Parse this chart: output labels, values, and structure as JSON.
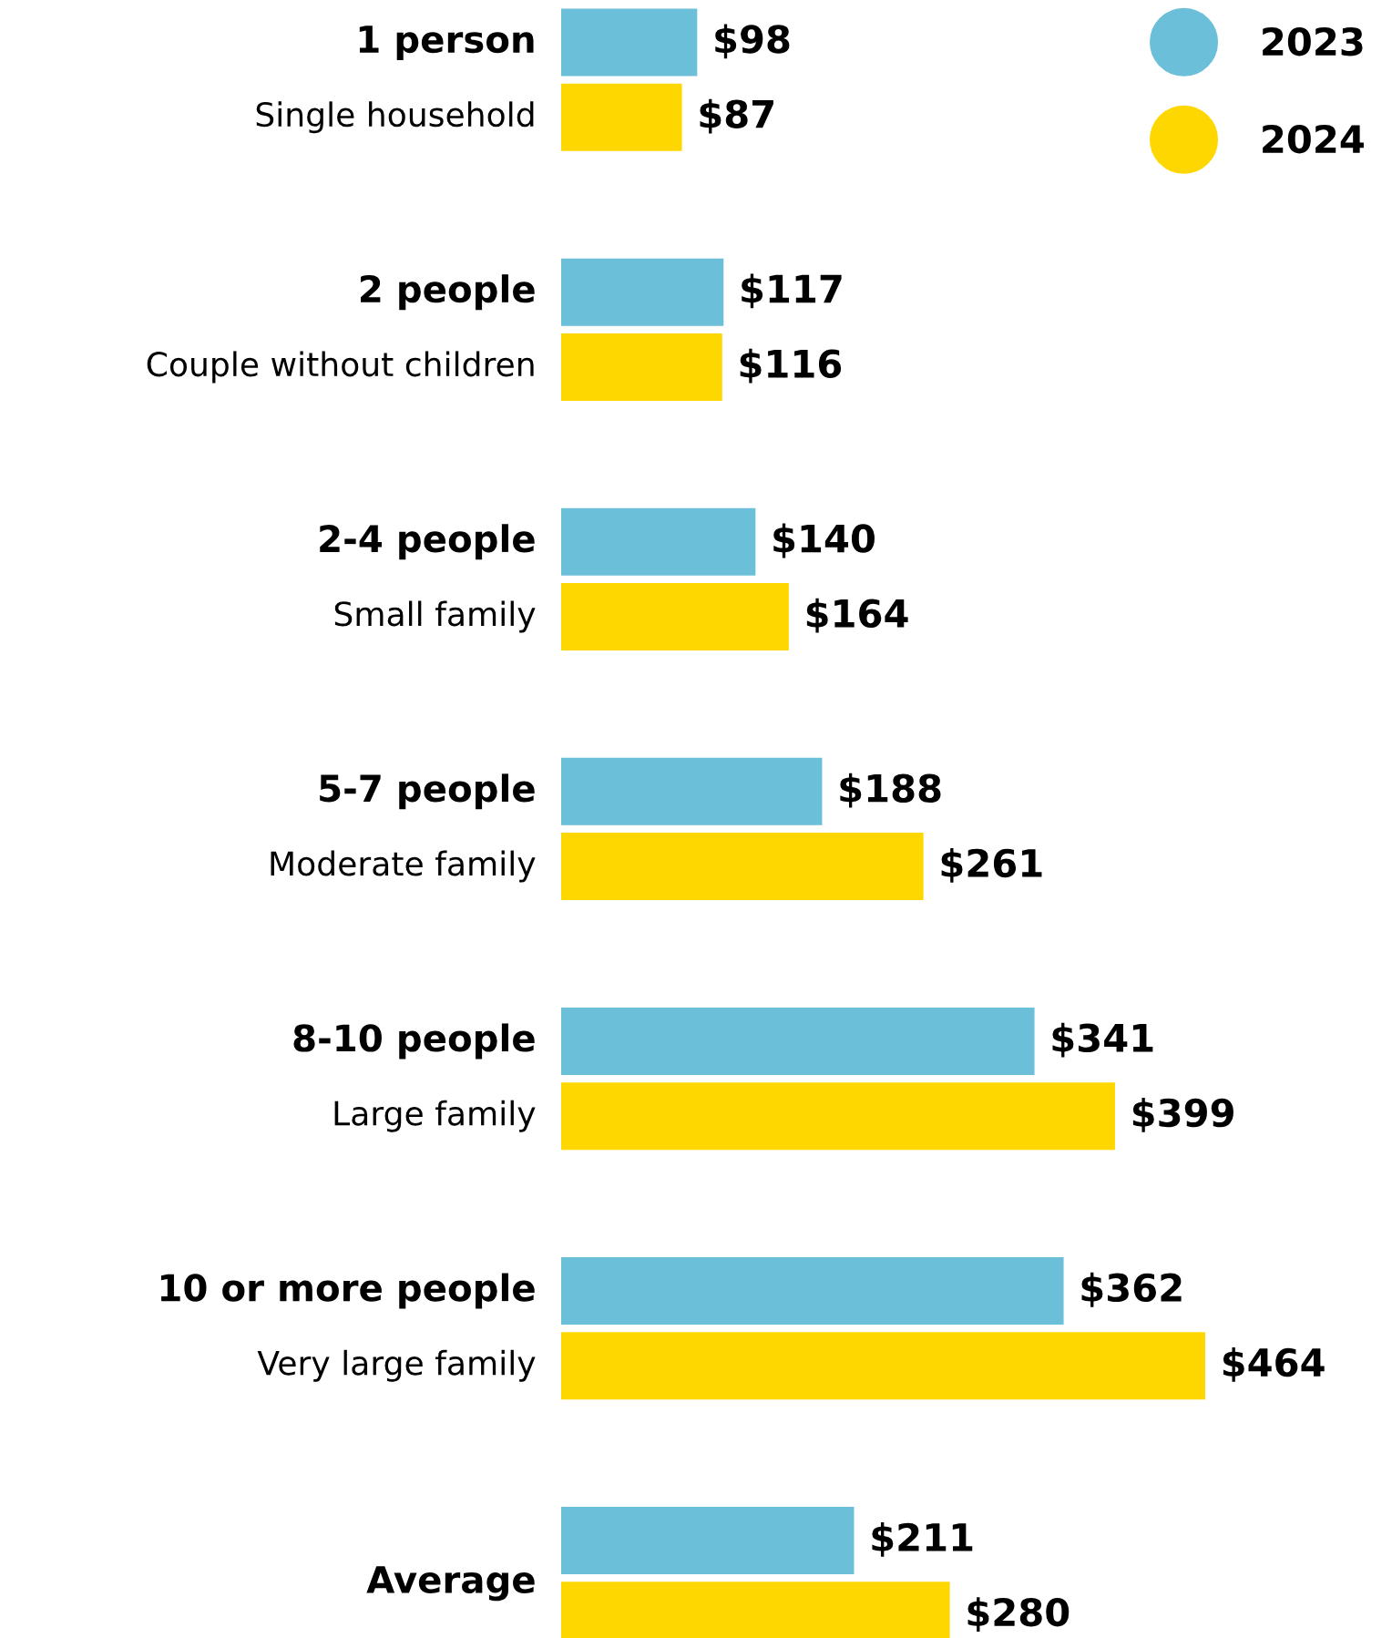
{
  "chart_data": {
    "type": "bar",
    "orientation": "horizontal",
    "legend": "top right",
    "categories": [
      "1 person\nSingle household",
      "2 people\nCouple without children",
      "2-4 people\nSmall family",
      "5-7 people\nModerate family",
      "8-10 people\nLarge family",
      "10 or more people\nVery large family",
      "Average"
    ],
    "series": [
      {
        "name": "2023",
        "color": "#6bbfd9",
        "values": [
          98,
          117,
          140,
          188,
          341,
          362,
          211
        ],
        "value_labels": [
          "$98",
          "$117",
          "$140",
          "$188",
          "$341",
          "$362",
          "$211"
        ]
      },
      {
        "name": "2024",
        "color": "#ffd700",
        "values": [
          87,
          116,
          164,
          261,
          399,
          464,
          280
        ],
        "value_labels": [
          "$87",
          "$116",
          "$164",
          "$261",
          "$399",
          "$464",
          "$280"
        ]
      }
    ]
  }
}
